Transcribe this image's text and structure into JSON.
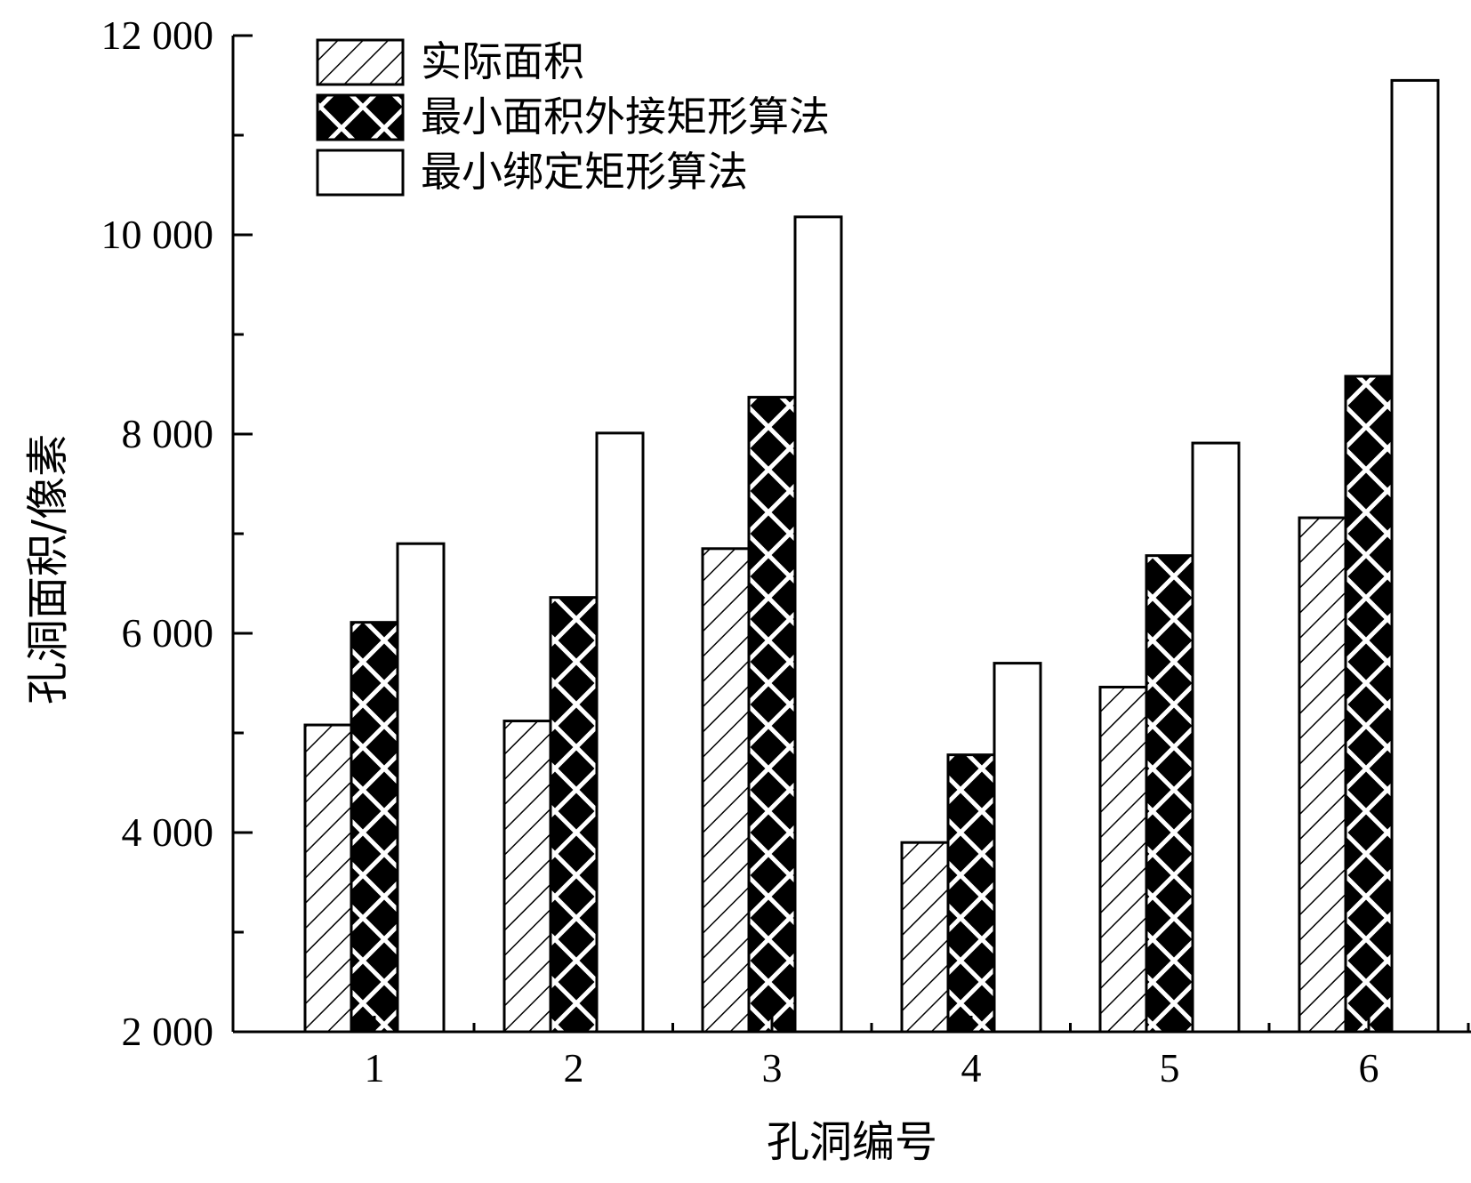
{
  "chart_data": {
    "type": "bar",
    "categories": [
      "1",
      "2",
      "3",
      "4",
      "5",
      "6"
    ],
    "series": [
      {
        "name": "实际面积",
        "pattern": "hatch",
        "values": [
          5080,
          5120,
          6850,
          3900,
          5460,
          7160
        ]
      },
      {
        "name": "最小面积外接矩形算法",
        "pattern": "crosshatch",
        "values": [
          6110,
          6360,
          8370,
          4780,
          6780,
          8580
        ]
      },
      {
        "name": "最小绑定矩形算法",
        "pattern": "none",
        "values": [
          6900,
          8010,
          10180,
          5700,
          7910,
          11550
        ]
      }
    ],
    "xlabel": "孔洞编号",
    "ylabel": "孔洞面积/像素",
    "ylim": [
      2000,
      12000
    ],
    "yticks": [
      2000,
      4000,
      6000,
      8000,
      10000,
      12000
    ],
    "ytick_labels": [
      "2 000",
      "4 000",
      "6 000",
      "8 000",
      "10 000",
      "12 000"
    ],
    "grid": false,
    "legend_position": "top-left"
  }
}
